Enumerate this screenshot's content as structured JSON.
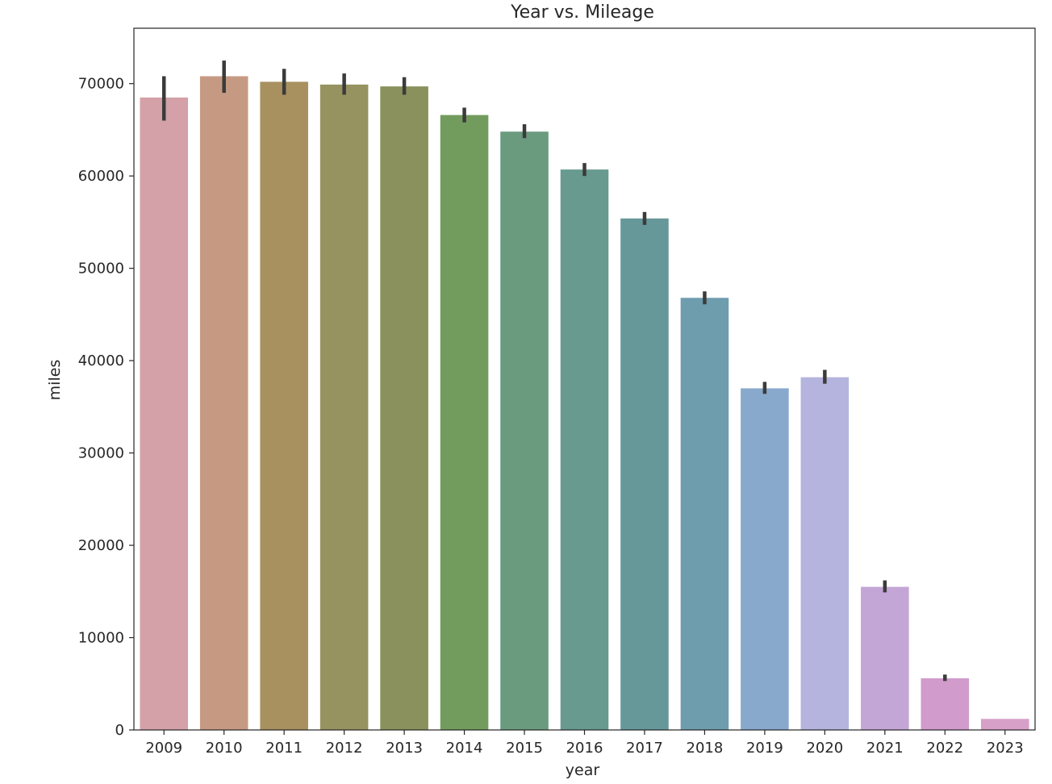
{
  "chart_data": {
    "type": "bar",
    "title": "Year vs. Mileage",
    "xlabel": "year",
    "ylabel": "miles",
    "categories": [
      "2009",
      "2010",
      "2011",
      "2012",
      "2013",
      "2014",
      "2015",
      "2016",
      "2017",
      "2018",
      "2019",
      "2020",
      "2021",
      "2022",
      "2023"
    ],
    "values": [
      68500,
      70800,
      70200,
      69900,
      69700,
      66600,
      64800,
      60700,
      55400,
      46800,
      37000,
      38200,
      15500,
      5600,
      1200
    ],
    "error_low": [
      66000,
      69000,
      68800,
      68800,
      68800,
      65800,
      64100,
      60000,
      54700,
      46100,
      36400,
      37500,
      14900,
      5300,
      null
    ],
    "error_high": [
      70800,
      72500,
      71600,
      71100,
      70700,
      67400,
      65600,
      61400,
      56100,
      47500,
      37700,
      39000,
      16200,
      6000,
      null
    ],
    "ylim": [
      0,
      76000
    ],
    "yticks": [
      0,
      10000,
      20000,
      30000,
      40000,
      50000,
      60000,
      70000
    ],
    "colors": [
      "#d4a1a8",
      "#c69a82",
      "#a8915f",
      "#969360",
      "#8a915c",
      "#729c5d",
      "#6a9b7f",
      "#689a8f",
      "#66989a",
      "#6e9dae",
      "#88a9cc",
      "#b4b4de",
      "#c4a6d6",
      "#d19bcc",
      "#d6a0c8"
    ],
    "error_color": "#3b3b3b",
    "grid": false,
    "legend": "none"
  }
}
